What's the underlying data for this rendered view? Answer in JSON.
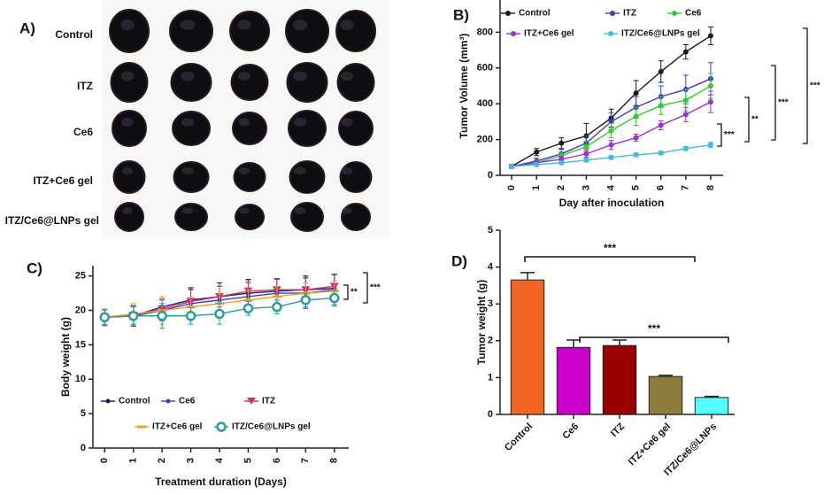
{
  "photo_panel": {
    "panel_label": "A)",
    "rows": [
      "Control",
      "ITZ",
      "Ce6",
      "ITZ+Ce6 gel",
      "ITZ/Ce6@LNPs gel"
    ]
  },
  "chart_data": [
    {
      "type": "line",
      "panel_label": "B)",
      "xlabel": "Day after inoculation",
      "ylabel": "Tumor Volume (mm³)",
      "x": [
        0,
        1,
        2,
        3,
        4,
        5,
        6,
        7,
        8
      ],
      "xlim": [
        -0.5,
        8.5
      ],
      "xticks": [
        0,
        1,
        2,
        3,
        4,
        5,
        6,
        7,
        8
      ],
      "ylim": [
        0,
        1000
      ],
      "yticks": [
        0,
        200,
        400,
        600,
        800,
        1000
      ],
      "legend": "top",
      "series": [
        {
          "name": "Control",
          "color": "#1a1a1a",
          "marker": "circle",
          "values": [
            50,
            130,
            180,
            220,
            320,
            460,
            580,
            690,
            780
          ],
          "errors": [
            10,
            20,
            30,
            70,
            50,
            70,
            60,
            40,
            50
          ]
        },
        {
          "name": "ITZ",
          "color": "#3b3bbf",
          "marker": "circle",
          "values": [
            50,
            80,
            120,
            180,
            300,
            380,
            440,
            480,
            540
          ],
          "errors": [
            10,
            15,
            25,
            40,
            50,
            60,
            60,
            80,
            90
          ]
        },
        {
          "name": "Ce6",
          "color": "#33cc33",
          "marker": "circle",
          "values": [
            50,
            70,
            110,
            160,
            250,
            330,
            390,
            420,
            500
          ],
          "errors": [
            10,
            15,
            20,
            30,
            40,
            50,
            50,
            60,
            70
          ]
        },
        {
          "name": "ITZ+Ce6 gel",
          "color": "#9933cc",
          "marker": "circle",
          "values": [
            50,
            70,
            90,
            120,
            170,
            210,
            280,
            340,
            410
          ],
          "errors": [
            10,
            10,
            15,
            20,
            25,
            20,
            25,
            40,
            60
          ]
        },
        {
          "name": "ITZ/Ce6@LNPs gel",
          "color": "#44bbdd",
          "marker": "circle",
          "values": [
            50,
            60,
            70,
            85,
            100,
            115,
            125,
            150,
            170
          ],
          "errors": [
            5,
            8,
            8,
            10,
            10,
            10,
            10,
            12,
            15
          ]
        }
      ],
      "annotations": [
        "***",
        "**",
        "***",
        "***"
      ]
    },
    {
      "type": "line",
      "panel_label": "C)",
      "xlabel": "Treatment duration (Days)",
      "ylabel": "Body weight  (g)",
      "x": [
        0,
        1,
        2,
        3,
        4,
        5,
        6,
        7,
        8
      ],
      "xlim": [
        -0.5,
        8.5
      ],
      "xticks": [
        0,
        1,
        2,
        3,
        4,
        5,
        6,
        7,
        8
      ],
      "ylim": [
        0,
        26.5
      ],
      "yticks": [
        0,
        5,
        10,
        15,
        20,
        25
      ],
      "legend": "bottom",
      "series": [
        {
          "name": "Control",
          "color": "#1a1a5e",
          "marker": "dot",
          "values": [
            19,
            19.2,
            20.5,
            21.5,
            22,
            22.5,
            22.8,
            23,
            23.2
          ],
          "errors": [
            1.2,
            1.5,
            1.5,
            1.8,
            2,
            2,
            1.8,
            2,
            2
          ]
        },
        {
          "name": "Ce6",
          "color": "#3b3bcf",
          "marker": "dot",
          "values": [
            19,
            19.2,
            20,
            21,
            21.5,
            22,
            22.5,
            22.5,
            23
          ],
          "errors": [
            1.2,
            1.5,
            1.5,
            2,
            2,
            2,
            2,
            2.2,
            2.2
          ]
        },
        {
          "name": "ITZ",
          "color": "#cc3366",
          "marker": "triangle",
          "values": [
            19,
            19.3,
            20.2,
            21.3,
            22,
            22.8,
            23,
            23,
            23.5
          ],
          "errors": [
            1.2,
            1.3,
            1.5,
            1.8,
            1.5,
            1.5,
            1.5,
            1.8,
            1.8
          ]
        },
        {
          "name": "ITZ+Ce6 gel",
          "color": "#f0a020",
          "marker": "dash",
          "values": [
            19,
            19.5,
            20,
            20.5,
            21,
            21.5,
            22,
            22.5,
            22.8
          ],
          "errors": [
            1,
            1.5,
            2,
            1.5,
            1.5,
            1.5,
            1.5,
            1.5,
            1.5
          ]
        },
        {
          "name": "ITZ/Ce6@LNPs gel",
          "color": "#2a9d9d",
          "marker": "ring",
          "values": [
            19,
            19.2,
            19.2,
            19.2,
            19.5,
            20.3,
            20.5,
            21.5,
            21.8
          ],
          "errors": [
            1,
            1.3,
            1.8,
            1.2,
            1.5,
            1,
            1,
            1,
            1.2
          ]
        }
      ],
      "annotations": [
        "**",
        "***"
      ]
    },
    {
      "type": "bar",
      "panel_label": "D)",
      "ylabel": "Tumor weight (g)",
      "categories": [
        "Control",
        "Ce6",
        "ITZ",
        "ITZ+Ce6 gel",
        "ITZ/Ce6@LNPs"
      ],
      "values": [
        3.65,
        1.82,
        1.87,
        1.03,
        0.46
      ],
      "errors": [
        0.2,
        0.2,
        0.15,
        0.03,
        0.03
      ],
      "colors": [
        "#f26522",
        "#cc00cc",
        "#990000",
        "#8c7d3c",
        "#55ffff"
      ],
      "ylim": [
        0,
        5
      ],
      "yticks": [
        0,
        1,
        2,
        3,
        4,
        5
      ],
      "annotations": [
        "***",
        "***"
      ]
    }
  ]
}
